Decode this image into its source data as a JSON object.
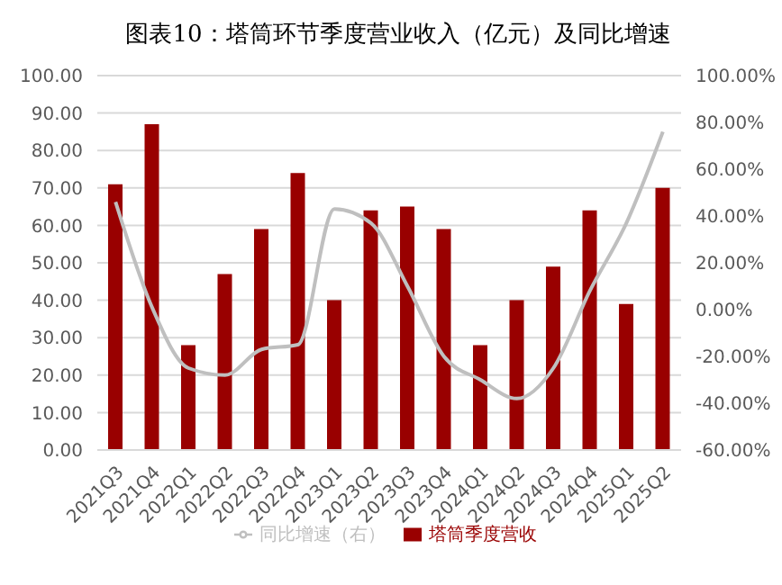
{
  "chart_data": {
    "type": "bar",
    "title": "图表10：塔筒环节季度营业收入（亿元）及同比增速",
    "categories": [
      "2021Q3",
      "2021Q4",
      "2022Q1",
      "2022Q2",
      "2022Q3",
      "2022Q4",
      "2023Q1",
      "2023Q2",
      "2023Q3",
      "2023Q4",
      "2024Q1",
      "2024Q2",
      "2024Q3",
      "2024Q4",
      "2025Q1",
      "2025Q2"
    ],
    "series": [
      {
        "name": "塔筒季度营收",
        "color": "#990000",
        "values": [
          71,
          87,
          28,
          47,
          59,
          74,
          40,
          64,
          65,
          59,
          28,
          40,
          49,
          64,
          39,
          70
        ]
      },
      {
        "name": "同比增速（右）",
        "type": "line",
        "axis": "y2",
        "color": "#bfbfbf",
        "values": [
          46,
          1,
          -25,
          -28,
          -17,
          -15,
          43,
          37,
          10,
          -20,
          -30,
          -38,
          -25,
          8,
          37,
          76
        ]
      }
    ],
    "ylim": [
      0,
      100
    ],
    "yticks": [
      {
        "value": 0,
        "label": "0.00"
      },
      {
        "value": 10,
        "label": "10.00"
      },
      {
        "value": 20,
        "label": "20.00"
      },
      {
        "value": 30,
        "label": "30.00"
      },
      {
        "value": 40,
        "label": "40.00"
      },
      {
        "value": 50,
        "label": "50.00"
      },
      {
        "value": 60,
        "label": "60.00"
      },
      {
        "value": 70,
        "label": "70.00"
      },
      {
        "value": 80,
        "label": "80.00"
      },
      {
        "value": 90,
        "label": "90.00"
      },
      {
        "value": 100,
        "label": "100.00"
      }
    ],
    "y2lim": [
      -60,
      100
    ],
    "y2ticks": [
      {
        "value": -60,
        "label": "-60.00%"
      },
      {
        "value": -40,
        "label": "-40.00%"
      },
      {
        "value": -20,
        "label": "-20.00%"
      },
      {
        "value": 0,
        "label": "0.00%"
      },
      {
        "value": 20,
        "label": "20.00%"
      },
      {
        "value": 40,
        "label": "40.00%"
      },
      {
        "value": 60,
        "label": "60.00%"
      },
      {
        "value": 80,
        "label": "80.00%"
      },
      {
        "value": 100,
        "label": "100.00%"
      }
    ],
    "grid": "y",
    "legend": "bottom",
    "marker": "none"
  }
}
